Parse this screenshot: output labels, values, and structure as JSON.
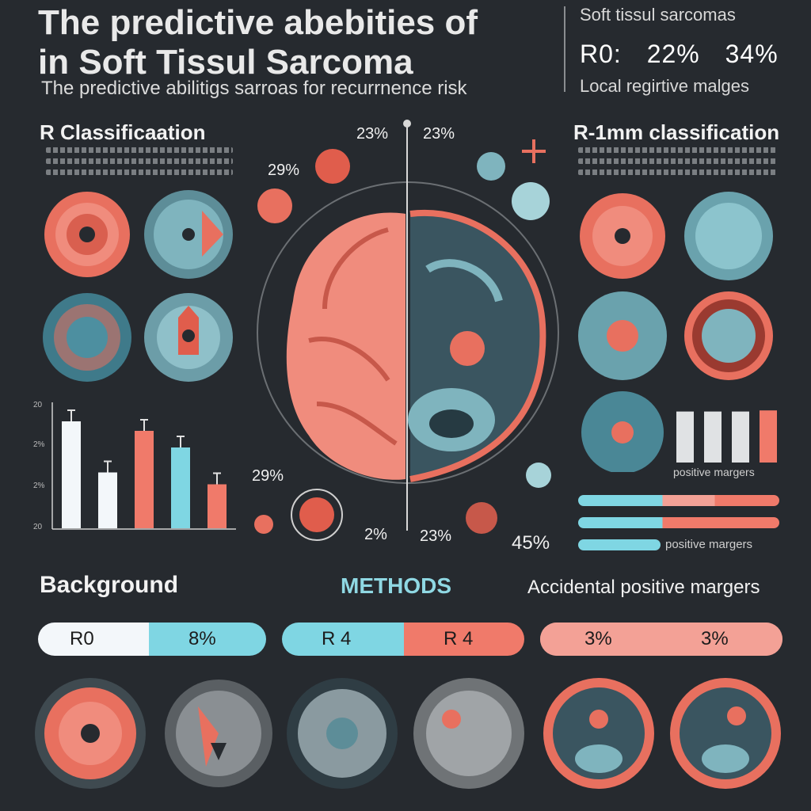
{
  "header": {
    "title_line1": "The predictive abebities of",
    "title_line2": "in  Soft Tissul Sarcoma",
    "subtitle": "The predictive abilitigs sarroas  for recurrnence risk"
  },
  "top_right": {
    "label": "Soft tissul sarcomas",
    "r0_label": "R0:",
    "value_a": "22%",
    "value_b": "34%",
    "footer": "Local regirtive malges"
  },
  "left_panel": {
    "heading": "R Classificaation",
    "chart_ticks": [
      "20",
      "2%",
      "2%",
      "20"
    ]
  },
  "right_panel": {
    "heading": "R-1mm classification",
    "chart_label": "positive margers",
    "bars_label": "positive margers"
  },
  "center": {
    "pct_top_left": "23%",
    "pct_top_right": "23%",
    "pct_left": "29%",
    "pct_lower_left": "29%",
    "pct_bottom_a": "2%",
    "pct_bottom_b": "23%",
    "pct_bottom_right": "45%"
  },
  "bottom": {
    "background_label": "Background",
    "methods_label": "METHODS",
    "accidental_label": "Accidental positive margers",
    "pill1_left": "R0",
    "pill1_right": "8%",
    "pill2_left": "R 4",
    "pill2_right": "R 4",
    "pill3_left": "3%",
    "pill3_right": "3%"
  },
  "colors": {
    "background": "#262a2f",
    "coral": "#f07a6a",
    "teal": "#7fd6e3",
    "pale": "#f3f7fa"
  },
  "chart_data": [
    {
      "type": "bar",
      "ylim": [
        0,
        100
      ],
      "values": [
        90,
        47,
        82,
        68,
        37
      ],
      "bar_colors": [
        "#f3f7fa",
        "#f3f7fa",
        "#f07a6a",
        "#7fd6e3",
        "#f07a6a"
      ]
    },
    {
      "type": "bar",
      "ylim": [
        0,
        100
      ],
      "values": [
        92,
        92,
        92,
        94
      ],
      "bar_colors": [
        "#e0e2e4",
        "#e0e2e4",
        "#e0e2e4",
        "#f07a6a"
      ]
    }
  ]
}
